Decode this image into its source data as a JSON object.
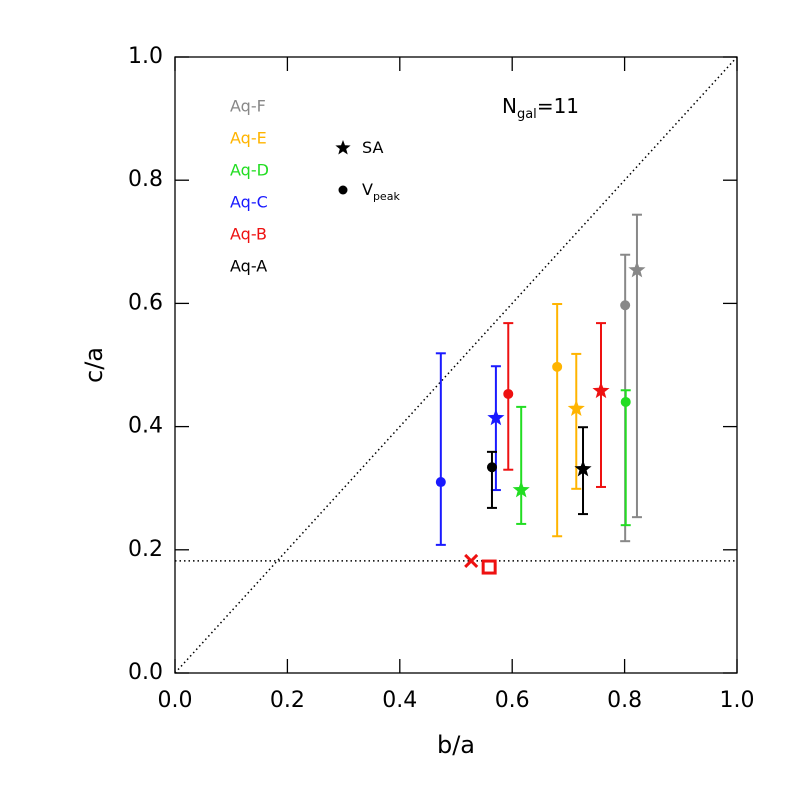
{
  "chart_data": {
    "type": "scatter",
    "xlabel": "b/a",
    "ylabel": "c/a",
    "xlim": [
      0,
      1
    ],
    "ylim": [
      0,
      1
    ],
    "xticks": [
      {
        "value": 0,
        "label": "0.0"
      },
      0.2,
      0.4,
      0.6,
      0.8,
      {
        "value": 1,
        "label": "1.0"
      }
    ],
    "yticks": [
      {
        "value": 0,
        "label": "0.0"
      },
      0.2,
      0.4,
      0.6,
      0.8,
      {
        "value": 1,
        "label": "1.0"
      }
    ],
    "annotation": {
      "main": "N",
      "sub": "gal",
      "rest": "=11"
    },
    "marker_legend": [
      {
        "marker": "star",
        "main": "SA"
      },
      {
        "marker": "circle",
        "main": "V",
        "sub": "peak"
      }
    ],
    "diagonal": true,
    "hline": 0.182,
    "series": [
      {
        "name": "Aq-F",
        "color": "#888888",
        "vpeak": {
          "x": 0.801,
          "y": 0.597,
          "ylow": 0.214,
          "yhigh": 0.679
        },
        "sa": {
          "x": 0.822,
          "y": 0.654,
          "ylow": 0.253,
          "yhigh": 0.744
        }
      },
      {
        "name": "Aq-E",
        "color": "#ffb400",
        "vpeak": {
          "x": 0.68,
          "y": 0.497,
          "ylow": 0.222,
          "yhigh": 0.599
        },
        "sa": {
          "x": 0.714,
          "y": 0.429,
          "ylow": 0.299,
          "yhigh": 0.518
        }
      },
      {
        "name": "Aq-D",
        "color": "#22dd22",
        "vpeak": {
          "x": 0.802,
          "y": 0.44,
          "ylow": 0.24,
          "yhigh": 0.459
        },
        "sa": {
          "x": 0.616,
          "y": 0.297,
          "ylow": 0.242,
          "yhigh": 0.432
        }
      },
      {
        "name": "Aq-C",
        "color": "#1a1aff",
        "vpeak": {
          "x": 0.473,
          "y": 0.31,
          "ylow": 0.208,
          "yhigh": 0.519
        },
        "sa": {
          "x": 0.571,
          "y": 0.414,
          "ylow": 0.297,
          "yhigh": 0.498
        }
      },
      {
        "name": "Aq-B",
        "color": "#ee1111",
        "vpeak": {
          "x": 0.593,
          "y": 0.453,
          "ylow": 0.33,
          "yhigh": 0.568
        },
        "sa": {
          "x": 0.758,
          "y": 0.458,
          "ylow": 0.302,
          "yhigh": 0.568
        }
      },
      {
        "name": "Aq-A",
        "color": "#000000",
        "vpeak": {
          "x": 0.564,
          "y": 0.334,
          "ylow": 0.268,
          "yhigh": 0.359
        },
        "sa": {
          "x": 0.726,
          "y": 0.331,
          "ylow": 0.258,
          "yhigh": 0.399
        }
      }
    ],
    "extra_points": [
      {
        "marker": "x",
        "color": "#ee1111",
        "x": 0.527,
        "y": 0.182
      },
      {
        "marker": "square",
        "color": "#ee1111",
        "x": 0.559,
        "y": 0.172
      }
    ]
  }
}
